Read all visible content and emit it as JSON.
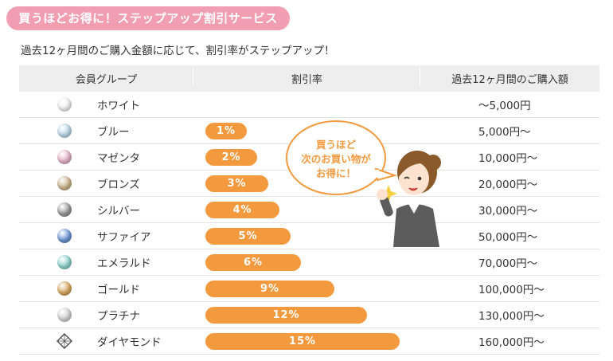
{
  "header": {
    "title": "買うほどお得に！ステップアップ割引サービス",
    "subtitle": "過去12ヶ月間のご購入金額に応じて、割引率がステップアップ！"
  },
  "table": {
    "columns": [
      "会員グループ",
      "割引率",
      "過去12ヶ月間のご購入額"
    ],
    "rows": [
      {
        "group": "ホワイト",
        "pearl": "white-pearl",
        "color": "#f2f2f2",
        "rate": "",
        "rate_value": 0,
        "amount": "～5,000円"
      },
      {
        "group": "ブルー",
        "pearl": "blue-pearl",
        "color": "#bcd9ea",
        "rate": "1%",
        "rate_value": 1,
        "amount": "5,000円～"
      },
      {
        "group": "マゼンタ",
        "pearl": "magenta-pearl",
        "color": "#e6b3c6",
        "rate": "2%",
        "rate_value": 2,
        "amount": "10,000円～"
      },
      {
        "group": "ブロンズ",
        "pearl": "bronze-pearl",
        "color": "#cdb48c",
        "rate": "3%",
        "rate_value": 3,
        "amount": "20,000円～"
      },
      {
        "group": "シルバー",
        "pearl": "silver-pearl",
        "color": "#9a9a9a",
        "rate": "4%",
        "rate_value": 4,
        "amount": "30,000円～"
      },
      {
        "group": "サファイア",
        "pearl": "sapphire-pearl",
        "color": "#6f97d6",
        "rate": "5%",
        "rate_value": 5,
        "amount": "50,000円～"
      },
      {
        "group": "エメラルド",
        "pearl": "emerald-pearl",
        "color": "#8fd3cf",
        "rate": "6%",
        "rate_value": 6,
        "amount": "70,000円～"
      },
      {
        "group": "ゴールド",
        "pearl": "gold-pearl",
        "color": "#d9a760",
        "rate": "9%",
        "rate_value": 9,
        "amount": "100,000円～"
      },
      {
        "group": "プラチナ",
        "pearl": "platinum-pearl",
        "color": "#d4d4d4",
        "rate": "12%",
        "rate_value": 12,
        "amount": "130,000円～"
      },
      {
        "group": "ダイヤモンド",
        "pearl": "diamond-icon",
        "color": "#555555",
        "rate": "15%",
        "rate_value": 15,
        "amount": "160,000円～"
      }
    ]
  },
  "mascot": {
    "speech": [
      "買うほど",
      "次のお買い物が",
      "お得に！"
    ]
  },
  "colors": {
    "accent_pink": "#f19db2",
    "bar_orange": "#f39a3f",
    "header_gray": "#eeeeee"
  }
}
